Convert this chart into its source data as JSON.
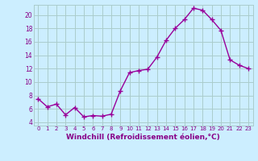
{
  "x": [
    0,
    1,
    2,
    3,
    4,
    5,
    6,
    7,
    8,
    9,
    10,
    11,
    12,
    13,
    14,
    15,
    16,
    17,
    18,
    19,
    20,
    21,
    22,
    23
  ],
  "y": [
    7.5,
    6.3,
    6.7,
    5.1,
    6.2,
    4.8,
    5.0,
    4.9,
    5.2,
    8.7,
    11.4,
    11.7,
    11.9,
    13.7,
    16.2,
    18.0,
    19.3,
    21.0,
    20.7,
    19.3,
    17.7,
    13.3,
    12.5,
    12.0
  ],
  "line_color": "#990099",
  "marker": "+",
  "markersize": 4,
  "markeredgewidth": 1.0,
  "linewidth": 1.0,
  "xlabel": "Windchill (Refroidissement éolien,°C)",
  "xlabel_fontsize": 6.5,
  "ylabel_ticks": [
    4,
    6,
    8,
    10,
    12,
    14,
    16,
    18,
    20
  ],
  "xtick_labels": [
    "0",
    "1",
    "2",
    "3",
    "4",
    "5",
    "6",
    "7",
    "8",
    "9",
    "10",
    "11",
    "12",
    "13",
    "14",
    "15",
    "16",
    "17",
    "18",
    "19",
    "20",
    "21",
    "22",
    "23"
  ],
  "ylim": [
    3.5,
    21.5
  ],
  "xlim": [
    -0.5,
    23.5
  ],
  "bg_color": "#cceeff",
  "grid_color": "#aacccc",
  "label_color": "#880088"
}
